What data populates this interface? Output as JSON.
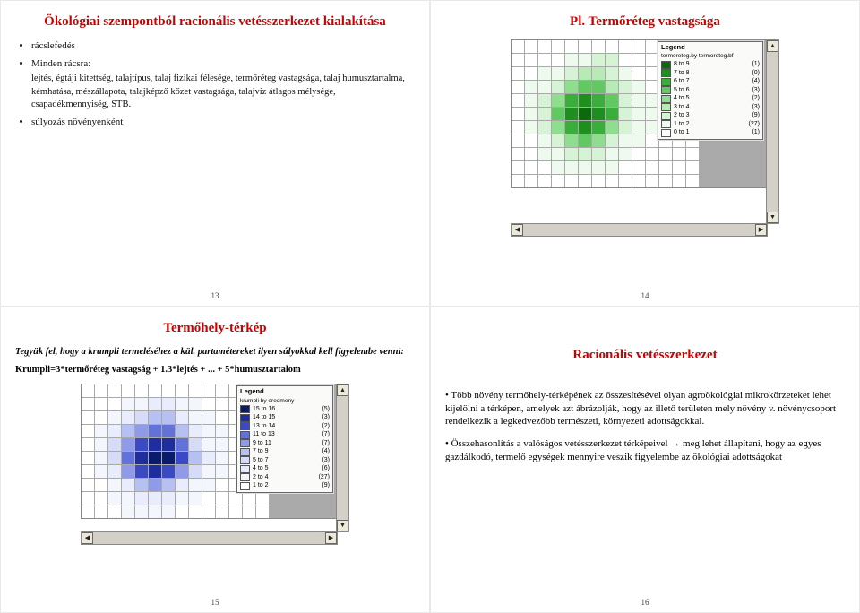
{
  "slide13": {
    "title": "Ökológiai szempontból racionális vetésszerkezet kialakítása",
    "b1": "rácslefedés",
    "b2": "Minden rácsra:",
    "b2_sub": "lejtés, égtáji kitettség, talajtípus, talaj fizikai félesége, termőréteg vastagsága, talaj humusztartalma, kémhatása, mészállapota, talajképző kőzet vastagsága, talajvíz átlagos mélysége, csapadékmennyiség, STB.",
    "b3": "súlyozás növényenként",
    "pagenum": "13"
  },
  "slide14": {
    "title": "Pl. Termőréteg vastagsága",
    "pagenum": "14",
    "legend_title": "Legend",
    "legend_subtitle": "termoreteg.by termoreteg.bf",
    "legend": [
      {
        "label": "8 to 9",
        "count": "(1)",
        "color": "#0b6b0b"
      },
      {
        "label": "7 to 8",
        "count": "(0)",
        "color": "#1e8e1e"
      },
      {
        "label": "6 to 7",
        "count": "(4)",
        "color": "#3aae3a"
      },
      {
        "label": "5 to 6",
        "count": "(3)",
        "color": "#62c962"
      },
      {
        "label": "4 to 5",
        "count": "(2)",
        "color": "#8fdd8f"
      },
      {
        "label": "3 to 4",
        "count": "(3)",
        "color": "#b7eab7"
      },
      {
        "label": "2 to 3",
        "count": "(9)",
        "color": "#d6f3d6"
      },
      {
        "label": "1 to 2",
        "count": "(27)",
        "color": "#eefaee"
      },
      {
        "label": "0 to 1",
        "count": "(1)",
        "color": "#ffffff"
      }
    ],
    "grid": {
      "cols": 14,
      "rows": 11,
      "cell_colors": [
        [
          "#fff",
          "#fff",
          "#fff",
          "#fff",
          "#fff",
          "#fff",
          "#fff",
          "#fff",
          "#fff",
          "#fff",
          "#fff",
          "#fff",
          "#fff",
          "#fff"
        ],
        [
          "#fff",
          "#fff",
          "#fff",
          "#fff",
          "#eefaee",
          "#eefaee",
          "#d6f3d6",
          "#d6f3d6",
          "#fff",
          "#fff",
          "#fff",
          "#fff",
          "#fff",
          "#fff"
        ],
        [
          "#fff",
          "#fff",
          "#eefaee",
          "#eefaee",
          "#d6f3d6",
          "#b7eab7",
          "#b7eab7",
          "#d6f3d6",
          "#eefaee",
          "#fff",
          "#fff",
          "#fff",
          "#fff",
          "#fff"
        ],
        [
          "#fff",
          "#eefaee",
          "#eefaee",
          "#d6f3d6",
          "#8fdd8f",
          "#62c962",
          "#62c962",
          "#b7eab7",
          "#d6f3d6",
          "#eefaee",
          "#fff",
          "#fff",
          "#fff",
          "#fff"
        ],
        [
          "#fff",
          "#eefaee",
          "#d6f3d6",
          "#8fdd8f",
          "#3aae3a",
          "#1e8e1e",
          "#3aae3a",
          "#62c962",
          "#d6f3d6",
          "#eefaee",
          "#eefaee",
          "#fff",
          "#fff",
          "#fff"
        ],
        [
          "#fff",
          "#eefaee",
          "#d6f3d6",
          "#62c962",
          "#1e8e1e",
          "#0b6b0b",
          "#1e8e1e",
          "#3aae3a",
          "#d6f3d6",
          "#eefaee",
          "#eefaee",
          "#fff",
          "#fff",
          "#fff"
        ],
        [
          "#fff",
          "#eefaee",
          "#d6f3d6",
          "#8fdd8f",
          "#3aae3a",
          "#1e8e1e",
          "#3aae3a",
          "#8fdd8f",
          "#d6f3d6",
          "#eefaee",
          "#eefaee",
          "#fff",
          "#fff",
          "#fff"
        ],
        [
          "#fff",
          "#fff",
          "#eefaee",
          "#d6f3d6",
          "#8fdd8f",
          "#62c962",
          "#8fdd8f",
          "#d6f3d6",
          "#eefaee",
          "#eefaee",
          "#fff",
          "#fff",
          "#fff",
          "#fff"
        ],
        [
          "#fff",
          "#fff",
          "#eefaee",
          "#eefaee",
          "#d6f3d6",
          "#d6f3d6",
          "#d6f3d6",
          "#eefaee",
          "#eefaee",
          "#fff",
          "#fff",
          "#fff",
          "#fff",
          "#fff"
        ],
        [
          "#fff",
          "#fff",
          "#fff",
          "#eefaee",
          "#eefaee",
          "#eefaee",
          "#eefaee",
          "#eefaee",
          "#fff",
          "#fff",
          "#fff",
          "#fff",
          "#fff",
          "#fff"
        ],
        [
          "#fff",
          "#fff",
          "#fff",
          "#fff",
          "#fff",
          "#fff",
          "#fff",
          "#fff",
          "#fff",
          "#fff",
          "#fff",
          "#fff",
          "#fff",
          "#fff"
        ]
      ]
    }
  },
  "slide15": {
    "title": "Termőhely-térkép",
    "note": "Tegyük fel, hogy a krumpli termeléséhez a kül. partamétereket ilyen súlyokkal kell figyelembe venni:",
    "formula": "Krumpli=3*termőréteg vastagság + 1.3*lejtés + ... + 5*humusztartalom",
    "pagenum": "15",
    "legend_title": "Legend",
    "legend_subtitle": "krumpli by eredmeny",
    "legend": [
      {
        "label": "15 to 16",
        "count": "(5)",
        "color": "#0b1b6b"
      },
      {
        "label": "14 to 15",
        "count": "(3)",
        "color": "#1e2e9e"
      },
      {
        "label": "13 to 14",
        "count": "(2)",
        "color": "#3a4ac4"
      },
      {
        "label": "11 to 13",
        "count": "(7)",
        "color": "#6272d8"
      },
      {
        "label": "9 to 11",
        "count": "(7)",
        "color": "#8f9be8"
      },
      {
        "label": "7 to 9",
        "count": "(4)",
        "color": "#b7c0f2"
      },
      {
        "label": "5 to 7",
        "count": "(3)",
        "color": "#d6dcf8"
      },
      {
        "label": "4 to 5",
        "count": "(6)",
        "color": "#e8ecfc"
      },
      {
        "label": "2 to 4",
        "count": "(27)",
        "color": "#f4f6fe"
      },
      {
        "label": "1 to 2",
        "count": "(9)",
        "color": "#ffffff"
      }
    ],
    "grid": {
      "cols": 14,
      "rows": 10,
      "cell_colors": [
        [
          "#fff",
          "#fff",
          "#fff",
          "#fff",
          "#fff",
          "#fff",
          "#fff",
          "#fff",
          "#fff",
          "#fff",
          "#fff",
          "#fff",
          "#fff",
          "#fff"
        ],
        [
          "#fff",
          "#fff",
          "#fff",
          "#f4f6fe",
          "#f4f6fe",
          "#e8ecfc",
          "#e8ecfc",
          "#f4f6fe",
          "#f4f6fe",
          "#fff",
          "#fff",
          "#fff",
          "#fff",
          "#fff"
        ],
        [
          "#fff",
          "#fff",
          "#f4f6fe",
          "#e8ecfc",
          "#d6dcf8",
          "#b7c0f2",
          "#b7c0f2",
          "#e8ecfc",
          "#f4f6fe",
          "#f4f6fe",
          "#fff",
          "#fff",
          "#fff",
          "#fff"
        ],
        [
          "#fff",
          "#f4f6fe",
          "#e8ecfc",
          "#b7c0f2",
          "#8f9be8",
          "#6272d8",
          "#6272d8",
          "#b7c0f2",
          "#e8ecfc",
          "#f4f6fe",
          "#f4f6fe",
          "#fff",
          "#fff",
          "#fff"
        ],
        [
          "#fff",
          "#f4f6fe",
          "#d6dcf8",
          "#8f9be8",
          "#3a4ac4",
          "#1e2e9e",
          "#1e2e9e",
          "#6272d8",
          "#d6dcf8",
          "#f4f6fe",
          "#f4f6fe",
          "#fff",
          "#fff",
          "#fff"
        ],
        [
          "#fff",
          "#f4f6fe",
          "#d6dcf8",
          "#6272d8",
          "#1e2e9e",
          "#0b1b6b",
          "#0b1b6b",
          "#3a4ac4",
          "#b7c0f2",
          "#e8ecfc",
          "#f4f6fe",
          "#fff",
          "#fff",
          "#fff"
        ],
        [
          "#fff",
          "#f4f6fe",
          "#e8ecfc",
          "#8f9be8",
          "#3a4ac4",
          "#1e2e9e",
          "#3a4ac4",
          "#8f9be8",
          "#d6dcf8",
          "#f4f6fe",
          "#f4f6fe",
          "#fff",
          "#fff",
          "#fff"
        ],
        [
          "#fff",
          "#fff",
          "#f4f6fe",
          "#e8ecfc",
          "#b7c0f2",
          "#8f9be8",
          "#b7c0f2",
          "#e8ecfc",
          "#f4f6fe",
          "#f4f6fe",
          "#fff",
          "#fff",
          "#fff",
          "#fff"
        ],
        [
          "#fff",
          "#fff",
          "#f4f6fe",
          "#f4f6fe",
          "#e8ecfc",
          "#e8ecfc",
          "#e8ecfc",
          "#f4f6fe",
          "#f4f6fe",
          "#fff",
          "#fff",
          "#fff",
          "#fff",
          "#fff"
        ],
        [
          "#fff",
          "#fff",
          "#fff",
          "#f4f6fe",
          "#f4f6fe",
          "#f4f6fe",
          "#f4f6fe",
          "#fff",
          "#fff",
          "#fff",
          "#fff",
          "#fff",
          "#fff",
          "#fff"
        ]
      ]
    }
  },
  "slide16": {
    "title": "Racionális vetésszerkezet",
    "p1": "Több növény termőhely-térképének az összesítésével olyan agroökológiai mikrokörzeteket lehet kijelölni a térképen, amelyek azt ábrázolják, hogy az illető területen mely növény v. növénycsoport rendelkezik a legkedvezőbb természeti, környezeti adottságokkal.",
    "p2": "Összehasonlítás a valóságos vetésszerkezet térképeivel → meg lehet állapítani, hogy az egyes gazdálkodó, termelő egységek mennyire veszik figyelembe az ökológiai adottságokat",
    "bullet": "•",
    "pagenum": "16"
  }
}
